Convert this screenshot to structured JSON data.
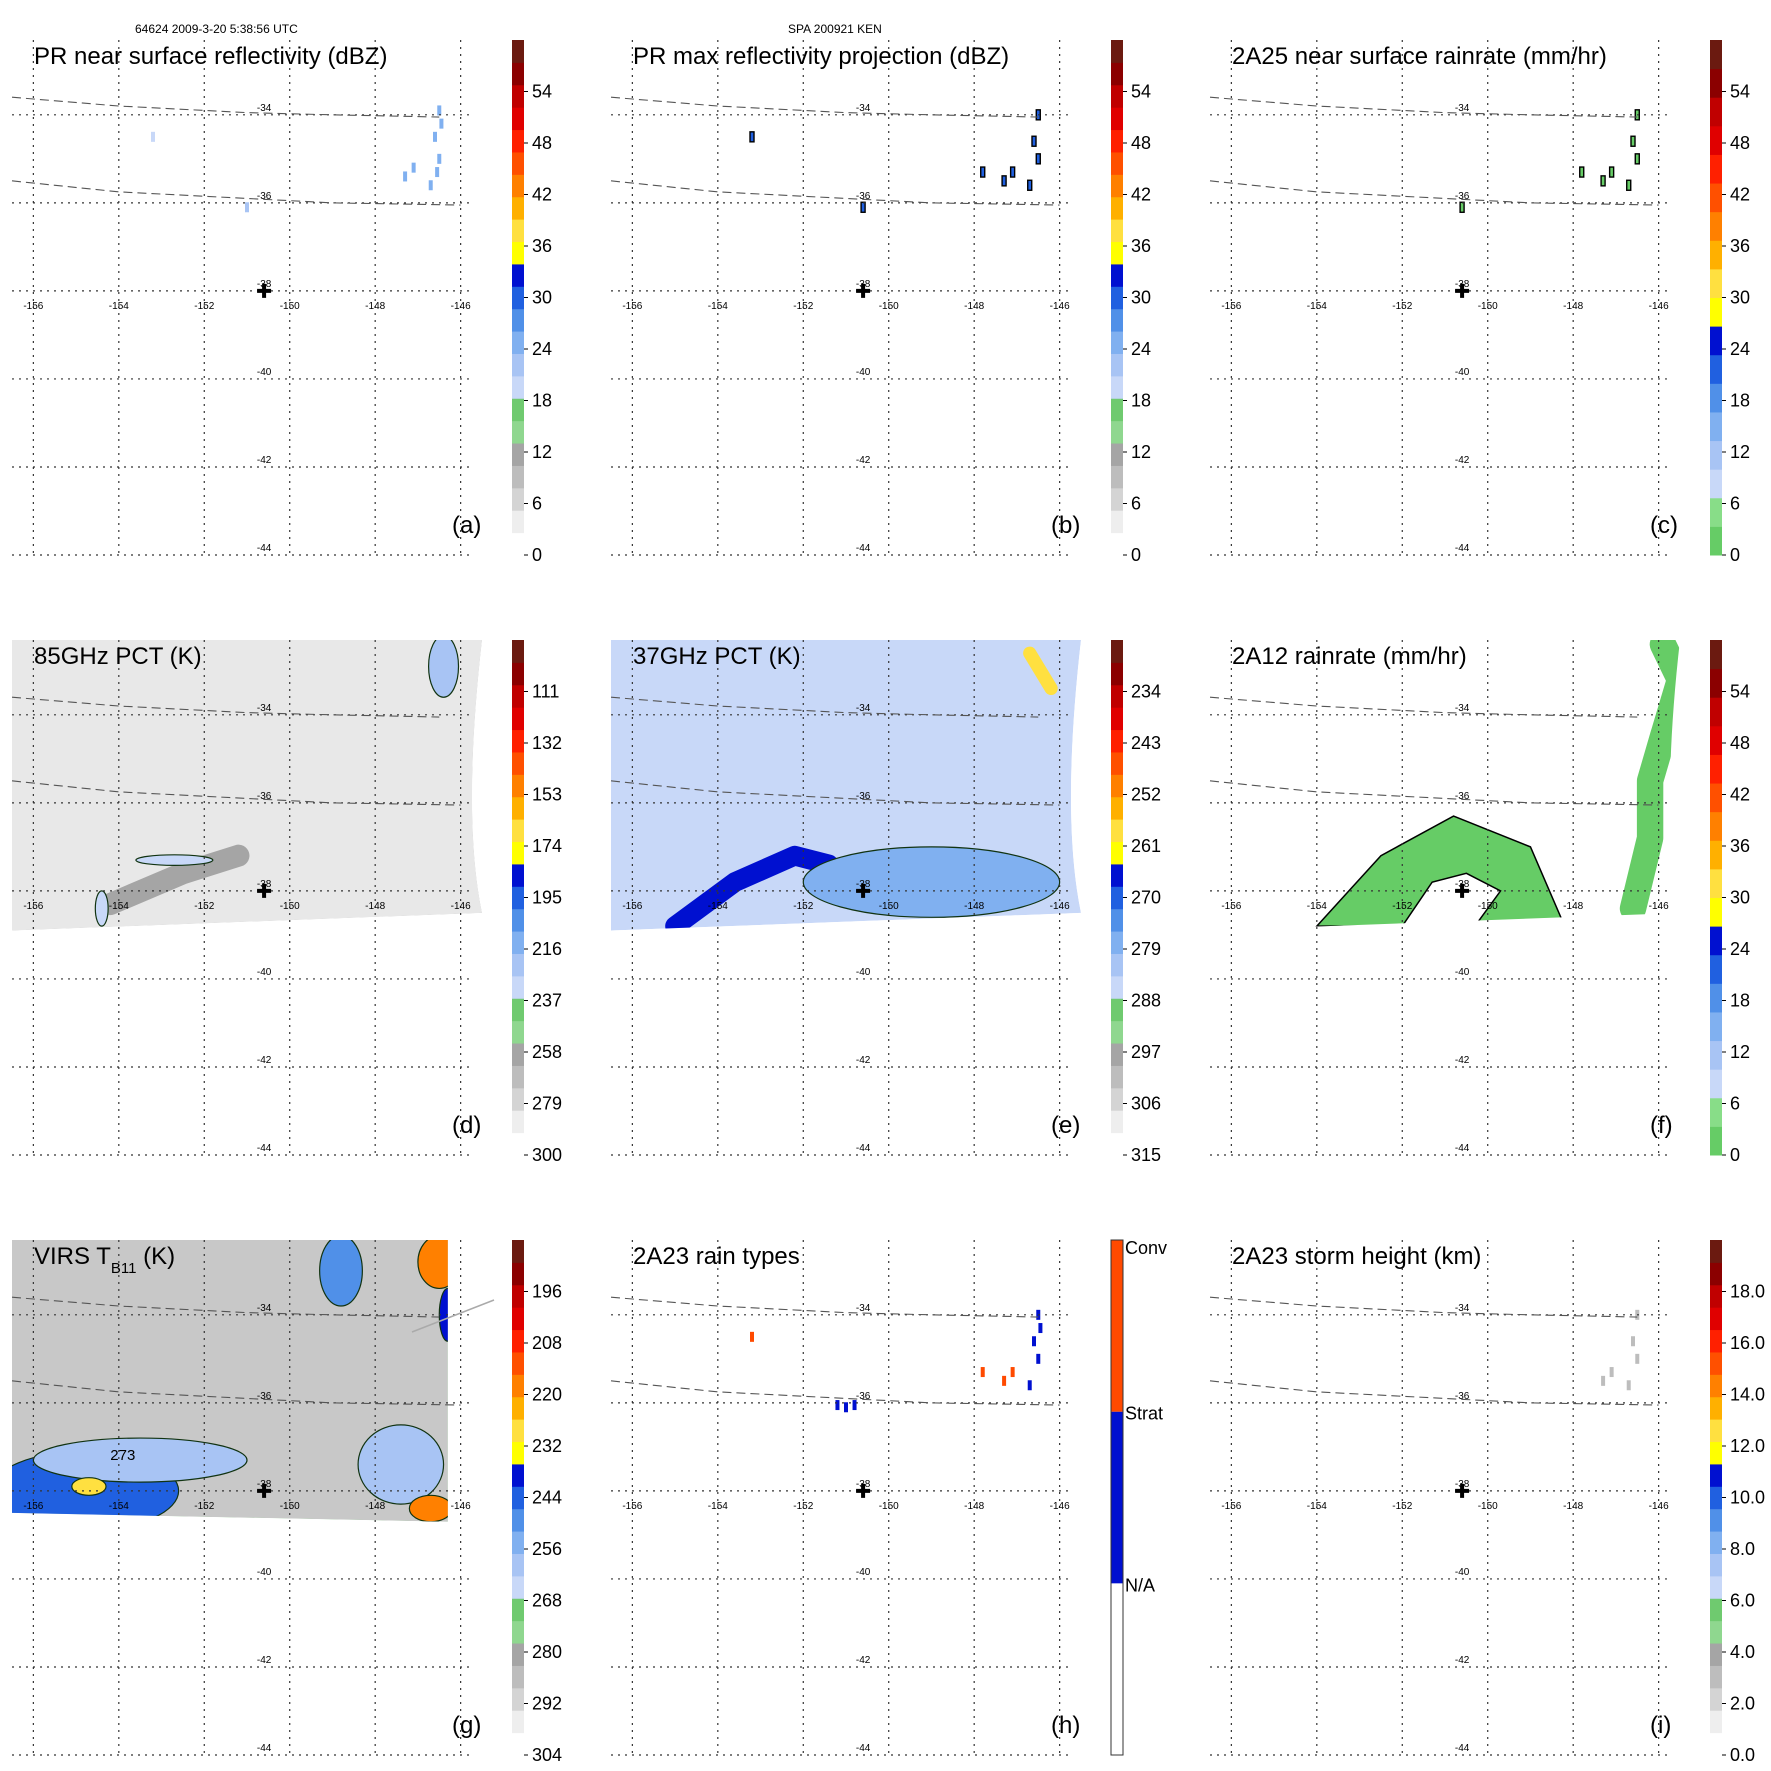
{
  "header": {
    "left": "64624 2009-3-20 5:38:56 UTC",
    "center": "SPA 200921 KEN"
  },
  "colors": {
    "grid": "#333333",
    "track_line": "#555555",
    "storm_marker": "#000000",
    "ocean_green": "#66cc66",
    "rain_blue": "#5599ee"
  },
  "map": {
    "lon_range": [
      -156.5,
      -145.5
    ],
    "lat_range": [
      -44,
      -32.3
    ],
    "lon_ticks": [
      -156,
      -154,
      -152,
      -150,
      -148,
      -146
    ],
    "lon_tick_labels": [
      "-156",
      "-154",
      "-152",
      "-150",
      "-148",
      "-146"
    ],
    "lat_ticks": [
      -34,
      -36,
      -38,
      -40,
      -42,
      -44
    ],
    "lat_tick_labels": [
      "-34",
      "-36",
      "-38",
      "-40",
      "-42",
      "-44"
    ],
    "storm_center": {
      "lon": -150.6,
      "lat": -38
    },
    "swath_edge_lines": [
      [
        [
          -156.5,
          -33.6
        ],
        [
          -154,
          -33.8
        ],
        [
          -151,
          -33.95
        ],
        [
          -149,
          -34.0
        ],
        [
          -146.5,
          -34.05
        ]
      ],
      [
        [
          -156.5,
          -35.5
        ],
        [
          -154,
          -35.75
        ],
        [
          -151,
          -35.9
        ],
        [
          -149,
          -36.0
        ],
        [
          -146,
          -36.05
        ]
      ]
    ]
  },
  "chart_data": [
    {
      "type": "heatmap",
      "panel_label": "(a)",
      "title": "PR near surface reflectivity (dBZ)",
      "colorbar": {
        "min": 0,
        "max": 60,
        "ticks": [
          0,
          6,
          12,
          18,
          24,
          30,
          36,
          42,
          48,
          54
        ],
        "tick_labels": [
          "0",
          "6",
          "12",
          "18",
          "24",
          "30",
          "36",
          "42",
          "48",
          "54"
        ],
        "palette": "dbz"
      },
      "swath": "pr",
      "features": [
        {
          "kind": "cells",
          "points": [
            [
              -146.5,
              -33.9
            ],
            [
              -146.6,
              -34.5
            ],
            [
              -146.5,
              -35.0
            ],
            [
              -146.7,
              -35.6
            ],
            [
              -147.1,
              -35.2
            ],
            [
              -147.3,
              -35.4
            ],
            [
              -146.45,
              -34.2
            ],
            [
              -146.55,
              -35.3
            ]
          ],
          "value": 24
        },
        {
          "kind": "cells",
          "points": [
            [
              -153.2,
              -34.5
            ]
          ],
          "value": 20
        },
        {
          "kind": "cells",
          "points": [
            [
              -151.0,
              -36.1
            ]
          ],
          "value": 22
        }
      ]
    },
    {
      "type": "heatmap",
      "panel_label": "(b)",
      "title": "PR max reflectivity projection (dBZ)",
      "colorbar": {
        "min": 0,
        "max": 60,
        "ticks": [
          0,
          6,
          12,
          18,
          24,
          30,
          36,
          42,
          48,
          54
        ],
        "tick_labels": [
          "0",
          "6",
          "12",
          "18",
          "24",
          "30",
          "36",
          "42",
          "48",
          "54"
        ],
        "palette": "dbz"
      },
      "swath": "pr",
      "features": [
        {
          "kind": "contour_cells",
          "points": [
            [
              -146.5,
              -34.0
            ],
            [
              -146.6,
              -34.6
            ],
            [
              -146.5,
              -35.0
            ],
            [
              -146.7,
              -35.6
            ],
            [
              -147.1,
              -35.3
            ],
            [
              -147.3,
              -35.5
            ],
            [
              -147.8,
              -35.3
            ],
            [
              -153.2,
              -34.5
            ],
            [
              -150.6,
              -36.1
            ]
          ],
          "value": 30
        }
      ]
    },
    {
      "type": "heatmap",
      "panel_label": "(c)",
      "title": "2A25 near surface rainrate (mm/hr)",
      "colorbar": {
        "min": 0,
        "max": 60,
        "ticks": [
          0,
          6,
          12,
          18,
          24,
          30,
          36,
          42,
          48,
          54
        ],
        "tick_labels": [
          "0",
          "6",
          "12",
          "18",
          "24",
          "30",
          "36",
          "42",
          "48",
          "54"
        ],
        "palette": "rain"
      },
      "swath": "pr",
      "features": [
        {
          "kind": "contour_cells",
          "points": [
            [
              -146.5,
              -34.0
            ],
            [
              -146.6,
              -34.6
            ],
            [
              -146.5,
              -35.0
            ],
            [
              -146.7,
              -35.6
            ],
            [
              -147.1,
              -35.3
            ],
            [
              -147.3,
              -35.5
            ],
            [
              -147.8,
              -35.3
            ],
            [
              -150.6,
              -36.1
            ]
          ],
          "value": 3
        }
      ]
    },
    {
      "type": "heatmap",
      "panel_label": "(d)",
      "title": "85GHz PCT (K)",
      "colorbar": {
        "min": 90,
        "max": 300,
        "ticks": [
          300,
          279,
          258,
          237,
          216,
          195,
          174,
          153,
          132,
          111
        ],
        "tick_labels": [
          "300",
          "279",
          "258",
          "237",
          "216",
          "195",
          "174",
          "153",
          "132",
          "111"
        ],
        "palette": "pct85"
      },
      "swath": "tmi",
      "background_value": 270,
      "features": [
        {
          "kind": "band",
          "points": [
            [
              -154.2,
              -38.3
            ],
            [
              -152.5,
              -37.6
            ],
            [
              -151.2,
              -37.2
            ]
          ],
          "value": 255,
          "width": 0.5
        },
        {
          "kind": "blob",
          "center": [
            -146.4,
            -32.9
          ],
          "size": [
            0.35,
            0.7
          ],
          "value": 225
        },
        {
          "kind": "blob",
          "center": [
            -152.7,
            -37.3
          ],
          "size": [
            0.9,
            0.12
          ],
          "value": 235
        },
        {
          "kind": "blob",
          "center": [
            -154.4,
            -38.4
          ],
          "size": [
            0.15,
            0.4
          ],
          "value": 235
        }
      ]
    },
    {
      "type": "heatmap",
      "panel_label": "(e)",
      "title": "37GHz PCT (K)",
      "colorbar": {
        "min": 225,
        "max": 315,
        "ticks": [
          315,
          306,
          297,
          288,
          279,
          270,
          261,
          252,
          243,
          234
        ],
        "tick_labels": [
          "315",
          "306",
          "297",
          "288",
          "279",
          "270",
          "261",
          "252",
          "243",
          "234"
        ],
        "palette": "pct37"
      },
      "swath": "tmi",
      "background_value": 284,
      "features": [
        {
          "kind": "band",
          "points": [
            [
              -155.0,
              -38.8
            ],
            [
              -153.6,
              -37.8
            ],
            [
              -152.2,
              -37.2
            ],
            [
              -151.4,
              -37.4
            ]
          ],
          "value": 266,
          "width": 0.45
        },
        {
          "kind": "band",
          "points": [
            [
              -146.7,
              -32.6
            ],
            [
              -146.2,
              -33.4
            ]
          ],
          "value": 258,
          "width": 0.3
        },
        {
          "kind": "blob",
          "center": [
            -149.0,
            -37.8
          ],
          "size": [
            3.0,
            0.8
          ],
          "value": 277
        }
      ]
    },
    {
      "type": "heatmap",
      "panel_label": "(f)",
      "title": "2A12 rainrate (mm/hr)",
      "colorbar": {
        "min": 0,
        "max": 60,
        "ticks": [
          0,
          6,
          12,
          18,
          24,
          30,
          36,
          42,
          48,
          54
        ],
        "tick_labels": [
          "0",
          "6",
          "12",
          "18",
          "24",
          "30",
          "36",
          "42",
          "48",
          "54"
        ],
        "palette": "rain"
      },
      "swath": "tmi",
      "features": [
        {
          "kind": "arc_region",
          "outer": [
            [
              -154.0,
              -38.8
            ],
            [
              -152.5,
              -37.2
            ],
            [
              -150.8,
              -36.3
            ],
            [
              -149.0,
              -37.0
            ],
            [
              -148.2,
              -38.8
            ]
          ],
          "inner_hole": [
            [
              -152.0,
              -38.8
            ],
            [
              -151.3,
              -37.8
            ],
            [
              -150.5,
              -37.6
            ],
            [
              -149.7,
              -38.0
            ],
            [
              -150.3,
              -38.8
            ]
          ],
          "value": 3
        },
        {
          "kind": "band",
          "points": [
            [
              -145.9,
              -32.4
            ],
            [
              -145.5,
              -33.2
            ],
            [
              -145.9,
              -34.5
            ],
            [
              -146.2,
              -35.5
            ],
            [
              -146.2,
              -36.8
            ],
            [
              -146.6,
              -38.4
            ]
          ],
          "value": 3,
          "width": 0.6
        }
      ]
    },
    {
      "type": "heatmap",
      "panel_label": "(g)",
      "title": "VIRS T",
      "title_sub": "B11",
      "title_units": " (K)",
      "colorbar": {
        "min": 184,
        "max": 304,
        "ticks": [
          304,
          292,
          280,
          268,
          256,
          244,
          232,
          220,
          208,
          196
        ],
        "tick_labels": [
          "304",
          "292",
          "280",
          "268",
          "256",
          "244",
          "232",
          "220",
          "208",
          "196"
        ],
        "palette": "ir"
      },
      "swath": "virs",
      "background_value": 275,
      "contour_label": "273",
      "features": [
        {
          "kind": "blob",
          "center": [
            -154.8,
            -38.0
          ],
          "size": [
            2.2,
            0.9
          ],
          "value": 245
        },
        {
          "kind": "blob",
          "center": [
            -153.5,
            -37.3
          ],
          "size": [
            2.5,
            0.5
          ],
          "value": 262
        },
        {
          "kind": "blob",
          "center": [
            -154.7,
            -37.9
          ],
          "size": [
            0.4,
            0.2
          ],
          "value": 228
        },
        {
          "kind": "blob",
          "center": [
            -147.4,
            -37.4
          ],
          "size": [
            1.0,
            0.9
          ],
          "value": 262
        },
        {
          "kind": "blob",
          "center": [
            -146.7,
            -38.4
          ],
          "size": [
            0.5,
            0.3
          ],
          "value": 220
        },
        {
          "kind": "blob",
          "center": [
            -146.5,
            -32.8
          ],
          "size": [
            0.5,
            0.6
          ],
          "value": 218
        },
        {
          "kind": "blob",
          "center": [
            -148.8,
            -33.0
          ],
          "size": [
            0.5,
            0.8
          ],
          "value": 250
        },
        {
          "kind": "blob",
          "center": [
            -146.3,
            -34.0
          ],
          "size": [
            0.2,
            0.6
          ],
          "value": 240
        }
      ]
    },
    {
      "type": "heatmap",
      "panel_label": "(h)",
      "title": "2A23 rain types",
      "colorbar": {
        "categorical": true,
        "ticks": [
          "N/A",
          "Strat",
          "Conv"
        ],
        "tick_labels": [
          "N/A",
          "Strat",
          "Conv"
        ],
        "palette": "raintype"
      },
      "swath": "pr",
      "features": [
        {
          "kind": "cells",
          "points": [
            [
              -146.5,
              -34.0
            ],
            [
              -146.45,
              -34.3
            ],
            [
              -146.6,
              -34.6
            ],
            [
              -146.5,
              -35.0
            ],
            [
              -146.7,
              -35.6
            ],
            [
              -151.2,
              -36.05
            ],
            [
              -151.0,
              -36.1
            ],
            [
              -150.8,
              -36.05
            ]
          ],
          "value": "Strat"
        },
        {
          "kind": "cells",
          "points": [
            [
              -147.1,
              -35.3
            ],
            [
              -147.3,
              -35.5
            ],
            [
              -147.8,
              -35.3
            ],
            [
              -153.2,
              -34.5
            ]
          ],
          "value": "Conv"
        }
      ]
    },
    {
      "type": "heatmap",
      "panel_label": "(i)",
      "title": "2A23 storm height (km)",
      "colorbar": {
        "min": 0,
        "max": 20,
        "ticks": [
          0.0,
          2.0,
          4.0,
          6.0,
          8.0,
          10.0,
          12.0,
          14.0,
          16.0,
          18.0
        ],
        "tick_labels": [
          "0.0",
          "2.0",
          "4.0",
          "6.0",
          "8.0",
          "10.0",
          "12.0",
          "14.0",
          "16.0",
          "18.0"
        ],
        "palette": "height"
      },
      "swath": "pr",
      "features": [
        {
          "kind": "cells",
          "points": [
            [
              -146.5,
              -34.0
            ],
            [
              -146.6,
              -34.6
            ],
            [
              -146.5,
              -35.0
            ],
            [
              -146.7,
              -35.6
            ],
            [
              -147.1,
              -35.3
            ],
            [
              -147.3,
              -35.5
            ]
          ],
          "value": 3.0
        }
      ]
    }
  ]
}
